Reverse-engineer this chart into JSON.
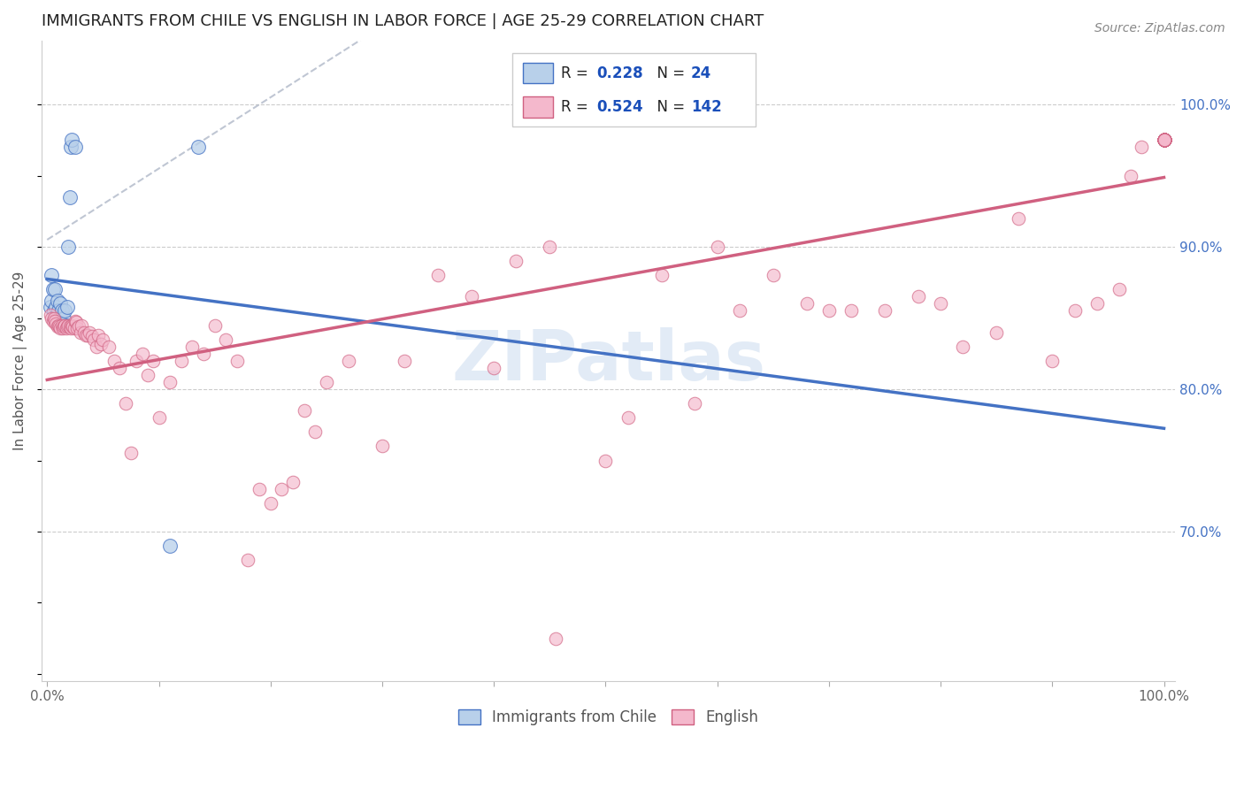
{
  "title": "IMMIGRANTS FROM CHILE VS ENGLISH IN LABOR FORCE | AGE 25-29 CORRELATION CHART",
  "source": "Source: ZipAtlas.com",
  "ylabel": "In Labor Force | Age 25-29",
  "legend_entry1_label": "Immigrants from Chile",
  "legend_entry2_label": "English",
  "R1": 0.228,
  "N1": 24,
  "R2": 0.524,
  "N2": 142,
  "color_blue_fill": "#b8d0ea",
  "color_blue_edge": "#4472c4",
  "color_pink_fill": "#f4b8cc",
  "color_pink_edge": "#d06080",
  "color_blue_line": "#4472c4",
  "color_pink_line": "#d06080",
  "color_legend_text": "#1a4fba",
  "color_right_axis": "#4472c4",
  "watermark_color": "#d0dff0",
  "xlim": [
    -0.005,
    1.01
  ],
  "ylim": [
    0.595,
    1.045
  ],
  "grid_vals": [
    0.7,
    0.8,
    0.9,
    1.0
  ],
  "blue_x": [
    0.003,
    0.004,
    0.004,
    0.005,
    0.006,
    0.007,
    0.007,
    0.008,
    0.009,
    0.01,
    0.011,
    0.012,
    0.013,
    0.015,
    0.016,
    0.017,
    0.018,
    0.019,
    0.02,
    0.021,
    0.022,
    0.025,
    0.11,
    0.135
  ],
  "blue_y": [
    0.858,
    0.862,
    0.88,
    0.87,
    0.855,
    0.85,
    0.87,
    0.858,
    0.862,
    0.855,
    0.85,
    0.86,
    0.855,
    0.85,
    0.855,
    0.845,
    0.858,
    0.9,
    0.935,
    0.97,
    0.975,
    0.97,
    0.69,
    0.97
  ],
  "pink_x": [
    0.003,
    0.004,
    0.005,
    0.006,
    0.007,
    0.008,
    0.009,
    0.01,
    0.011,
    0.012,
    0.013,
    0.014,
    0.015,
    0.016,
    0.017,
    0.018,
    0.019,
    0.02,
    0.021,
    0.022,
    0.023,
    0.024,
    0.025,
    0.026,
    0.027,
    0.028,
    0.03,
    0.031,
    0.033,
    0.035,
    0.036,
    0.038,
    0.04,
    0.042,
    0.044,
    0.046,
    0.048,
    0.05,
    0.055,
    0.06,
    0.065,
    0.07,
    0.075,
    0.08,
    0.085,
    0.09,
    0.095,
    0.1,
    0.11,
    0.12,
    0.13,
    0.14,
    0.15,
    0.16,
    0.17,
    0.18,
    0.19,
    0.2,
    0.21,
    0.22,
    0.23,
    0.24,
    0.25,
    0.27,
    0.3,
    0.32,
    0.35,
    0.38,
    0.4,
    0.42,
    0.45,
    0.455,
    0.5,
    0.52,
    0.55,
    0.58,
    0.6,
    0.62,
    0.65,
    0.68,
    0.7,
    0.72,
    0.75,
    0.78,
    0.8,
    0.82,
    0.85,
    0.87,
    0.9,
    0.92,
    0.94,
    0.96,
    0.97,
    0.98,
    1.0,
    1.0,
    1.0,
    1.0,
    1.0,
    1.0,
    1.0,
    1.0,
    1.0,
    1.0,
    1.0,
    1.0,
    1.0,
    1.0,
    1.0,
    1.0,
    1.0,
    1.0,
    1.0,
    1.0,
    1.0,
    1.0,
    1.0,
    1.0,
    1.0,
    1.0,
    1.0,
    1.0,
    1.0,
    1.0,
    1.0,
    1.0,
    1.0,
    1.0,
    1.0,
    1.0,
    1.0,
    1.0,
    1.0,
    1.0,
    1.0,
    1.0,
    1.0,
    1.0,
    1.0
  ],
  "pink_y": [
    0.852,
    0.85,
    0.848,
    0.85,
    0.848,
    0.846,
    0.844,
    0.845,
    0.844,
    0.843,
    0.845,
    0.843,
    0.844,
    0.845,
    0.843,
    0.844,
    0.845,
    0.844,
    0.843,
    0.845,
    0.844,
    0.843,
    0.848,
    0.847,
    0.843,
    0.844,
    0.84,
    0.845,
    0.84,
    0.838,
    0.838,
    0.84,
    0.837,
    0.835,
    0.83,
    0.838,
    0.832,
    0.835,
    0.83,
    0.82,
    0.815,
    0.79,
    0.755,
    0.82,
    0.825,
    0.81,
    0.82,
    0.78,
    0.805,
    0.82,
    0.83,
    0.825,
    0.845,
    0.835,
    0.82,
    0.68,
    0.73,
    0.72,
    0.73,
    0.735,
    0.785,
    0.77,
    0.805,
    0.82,
    0.76,
    0.82,
    0.88,
    0.865,
    0.815,
    0.89,
    0.9,
    0.625,
    0.75,
    0.78,
    0.88,
    0.79,
    0.9,
    0.855,
    0.88,
    0.86,
    0.855,
    0.855,
    0.855,
    0.865,
    0.86,
    0.83,
    0.84,
    0.92,
    0.82,
    0.855,
    0.86,
    0.87,
    0.95,
    0.97,
    0.975,
    0.975,
    0.975,
    0.975,
    0.975,
    0.975,
    0.975,
    0.975,
    0.975,
    0.975,
    0.975,
    0.975,
    0.975,
    0.975,
    0.975,
    0.975,
    0.975,
    0.975,
    0.975,
    0.975,
    0.975,
    0.975,
    0.975,
    0.975,
    0.975,
    0.975,
    0.975,
    0.975,
    0.975,
    0.975,
    0.975,
    0.975,
    0.975,
    0.975,
    0.975,
    0.975,
    0.975,
    0.975,
    0.975,
    0.975,
    0.975,
    0.975,
    0.975,
    0.975,
    0.975
  ]
}
